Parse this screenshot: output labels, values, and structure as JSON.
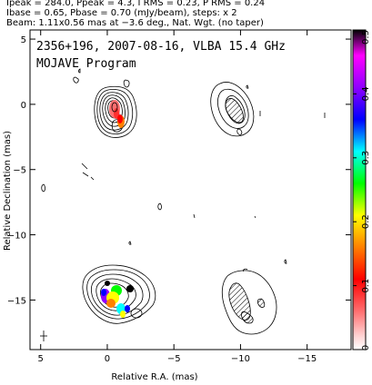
{
  "header": {
    "line1": "Ipeak = 284.0, Ppeak = 4.3, I RMS = 0.23, P RMS = 0.24",
    "line2": "Ibase = 0.65, Pbase = 0.70 (mJy/beam), steps: x 2",
    "line3": "Beam: 1.11x0.56 mas at −3.6 deg., Nat. Wgt. (no taper)"
  },
  "chart_data": {
    "type": "heatmap",
    "title": "2356+196, 2007-08-16, VLBA 15.4 GHz",
    "subtitle": "MOJAVE Program",
    "xlabel": "Relative R.A. (mas)",
    "ylabel": "Relative Declination (mas)",
    "xlim": [
      5.8,
      -18.3
    ],
    "ylim": [
      -18.8,
      5.7
    ],
    "x_ticks": [
      5,
      0,
      -5,
      -10,
      -15
    ],
    "x_tick_labels": [
      "5",
      "0",
      "−5",
      "−10",
      "−15"
    ],
    "y_ticks": [
      5,
      0,
      -5,
      -10,
      -15
    ],
    "y_tick_labels": [
      "5",
      "0",
      "−5",
      "−10",
      "−15"
    ],
    "colorbar": {
      "range": [
        0,
        0.5
      ],
      "ticks": [
        0,
        0.1,
        0.2,
        0.3,
        0.4,
        0.5
      ],
      "tick_labels": [
        "0",
        "0.1",
        "0.2",
        "0.3",
        "0.4",
        "0.5"
      ],
      "colors": [
        "#ffffff",
        "#ff9fa0",
        "#ff0000",
        "#ff8000",
        "#ffff00",
        "#00ff00",
        "#00ffff",
        "#0000ff",
        "#9000ff",
        "#ff00ff",
        "#000000"
      ]
    },
    "panels": [
      {
        "name": "Stokes I + fractional polarization (core)",
        "center": [
          0.3,
          -0.2
        ]
      },
      {
        "name": "Polarized intensity (core)",
        "center": [
          -10.2,
          -0.5
        ]
      },
      {
        "name": "Stokes I + fractional polarization (lower)",
        "center": [
          0.6,
          -15.5
        ]
      },
      {
        "name": "Polarized intensity (lower)",
        "center": [
          -10.8,
          -15.8
        ]
      }
    ],
    "grid": false
  }
}
